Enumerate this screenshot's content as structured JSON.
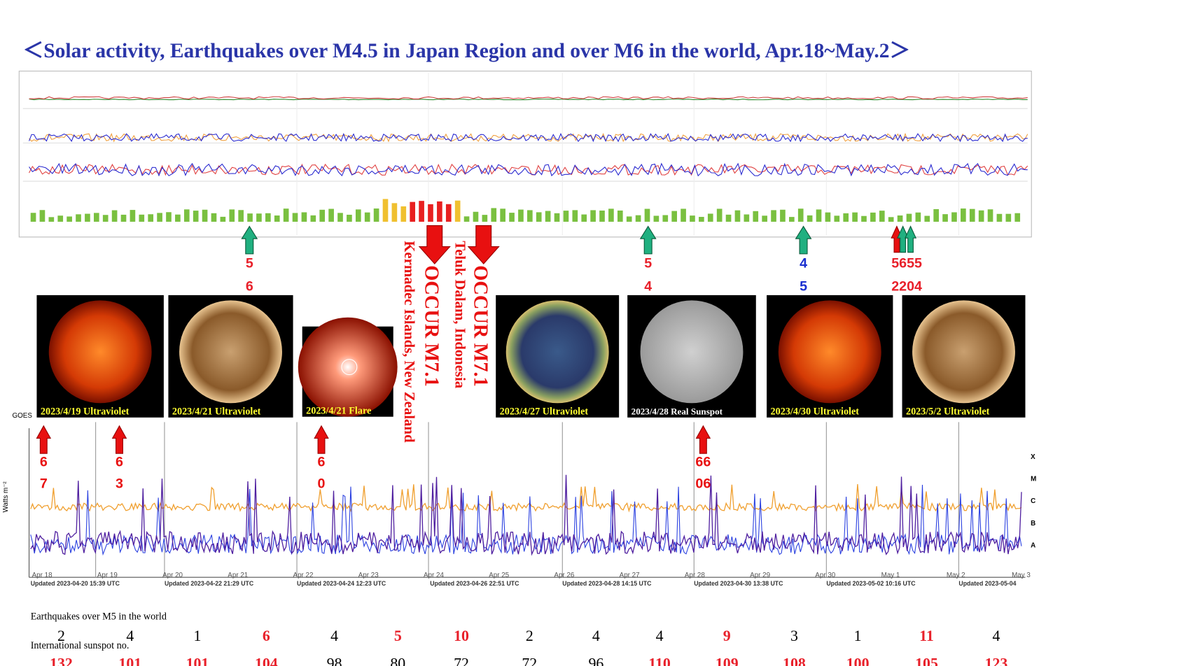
{
  "title": "＜Solar activity, Earthquakes over M4.5 in Japan Region and over M6 in the world,   Apr.18~May.2＞",
  "japan_quakes": [
    {
      "top": "5",
      "bottom": "6",
      "color": "#e8202a"
    },
    {
      "top": "5",
      "bottom": "4",
      "color": "#e8202a"
    },
    {
      "top": "4",
      "bottom": "5",
      "color": "#1a2fd0"
    },
    {
      "top": "5655",
      "bottom": "2204",
      "color": "#e8202a"
    }
  ],
  "world_m7": [
    {
      "label": "OCCUR M7.1",
      "place": "Kermadec Islands, New Zealand"
    },
    {
      "label": "OCCUR M7.1",
      "place": "Teluk Dalam, Indonesia"
    }
  ],
  "world_m6": [
    {
      "top": "6",
      "bottom": "7"
    },
    {
      "top": "6",
      "bottom": "3"
    },
    {
      "top": "6",
      "bottom": "0"
    },
    {
      "top": "66",
      "bottom": "06"
    }
  ],
  "images": [
    "2023/4/19 Ultraviolet",
    "2023/4/21 Ultraviolet",
    "2023/4/21 Flare",
    "2023/4/27 Ultraviolet",
    "2023/4/28 Real Sunspot",
    "2023/4/30 Ultraviolet",
    "2023/5/2 Ultraviolet"
  ],
  "xray_chart": {
    "source": "GOES",
    "y_label": "Watts m⁻²",
    "classes": [
      "X",
      "M",
      "C",
      "B",
      "A"
    ],
    "dates": [
      "Apr 18",
      "Apr 19",
      "Apr 20",
      "Apr 21",
      "Apr 22",
      "Apr 23",
      "Apr 24",
      "Apr 25",
      "Apr 26",
      "Apr 27",
      "Apr 28",
      "Apr 29",
      "Apr 30",
      "May 1",
      "May 2",
      "May 3"
    ],
    "updates": [
      "Updated 2023-04-20 15:39 UTC",
      "Updated 2023-04-22 21:29 UTC",
      "Updated 2023-04-24 12:23 UTC",
      "Updated 2023-04-26 22:51 UTC",
      "Updated 2023-04-28 14:15 UTC",
      "Updated 2023-04-30 13:38 UTC",
      "Updated 2023-05-02 10:16 UTC",
      "Updated 2023-05-04"
    ]
  },
  "table": {
    "earthquakes_label": "Earthquakes over M5 in the world",
    "earthquakes": [
      {
        "value": 2,
        "color": "#000000"
      },
      {
        "value": 4,
        "color": "#000000"
      },
      {
        "value": 1,
        "color": "#000000"
      },
      {
        "value": 6,
        "color": "#e8202a"
      },
      {
        "value": 4,
        "color": "#000000"
      },
      {
        "value": 5,
        "color": "#e8202a"
      },
      {
        "value": 10,
        "color": "#e8202a"
      },
      {
        "value": 2,
        "color": "#000000"
      },
      {
        "value": 4,
        "color": "#000000"
      },
      {
        "value": 4,
        "color": "#000000"
      },
      {
        "value": 9,
        "color": "#e8202a"
      },
      {
        "value": 3,
        "color": "#000000"
      },
      {
        "value": 1,
        "color": "#000000"
      },
      {
        "value": 11,
        "color": "#e8202a"
      },
      {
        "value": 4,
        "color": "#000000"
      }
    ],
    "sunspot_label": "International sunspot no.",
    "sunspots": [
      {
        "value": 132,
        "color": "#e8202a"
      },
      {
        "value": 101,
        "color": "#e8202a"
      },
      {
        "value": 101,
        "color": "#e8202a"
      },
      {
        "value": 104,
        "color": "#e8202a"
      },
      {
        "value": 98,
        "color": "#000000"
      },
      {
        "value": 80,
        "color": "#000000"
      },
      {
        "value": 72,
        "color": "#000000"
      },
      {
        "value": 72,
        "color": "#000000"
      },
      {
        "value": 96,
        "color": "#000000"
      },
      {
        "value": 110,
        "color": "#e8202a"
      },
      {
        "value": 109,
        "color": "#e8202a"
      },
      {
        "value": 108,
        "color": "#e8202a"
      },
      {
        "value": 100,
        "color": "#e8202a"
      },
      {
        "value": 105,
        "color": "#e8202a"
      },
      {
        "value": 123,
        "color": "#e8202a"
      }
    ]
  }
}
